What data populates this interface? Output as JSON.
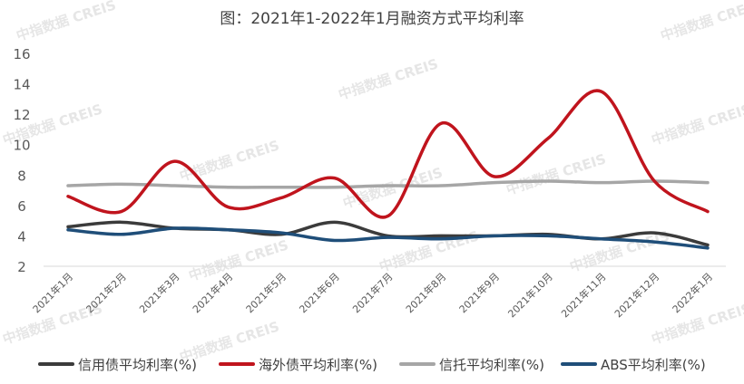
{
  "chart_data": {
    "type": "line",
    "title": "图：2021年1-2022年1月融资方式平均利率",
    "xlabel": "",
    "ylabel": "",
    "categories": [
      "2021年1月",
      "2021年2月",
      "2021年3月",
      "2021年4月",
      "2021年5月",
      "2021年6月",
      "2021年7月",
      "2021年8月",
      "2021年9月",
      "2021年10月",
      "2021年11月",
      "2021年12月",
      "2022年1月"
    ],
    "ylim": [
      2,
      16
    ],
    "yticks": [
      2,
      4,
      6,
      8,
      10,
      12,
      14,
      16
    ],
    "grid": false,
    "legend_position": "bottom",
    "series": [
      {
        "name": "信用债平均利率(%)",
        "color": "#3b3b3b",
        "values": [
          4.6,
          4.9,
          4.5,
          4.4,
          4.1,
          4.9,
          4.0,
          4.0,
          4.0,
          4.1,
          3.8,
          4.2,
          3.4
        ]
      },
      {
        "name": "海外债平均利率(%)",
        "color": "#c0141d",
        "values": [
          6.6,
          5.6,
          8.9,
          5.9,
          6.5,
          7.8,
          5.3,
          11.4,
          7.9,
          10.4,
          13.5,
          7.6,
          5.6
        ]
      },
      {
        "name": "信托平均利率(%)",
        "color": "#a6a6a6",
        "values": [
          7.3,
          7.4,
          7.3,
          7.2,
          7.2,
          7.2,
          7.3,
          7.3,
          7.5,
          7.6,
          7.5,
          7.6,
          7.5
        ]
      },
      {
        "name": "ABS平均利率(%)",
        "color": "#1f4e79",
        "values": [
          4.4,
          4.1,
          4.5,
          4.4,
          4.2,
          3.7,
          3.9,
          3.8,
          4.0,
          4.0,
          3.8,
          3.6,
          3.2
        ]
      }
    ],
    "watermark": "中指数据 CREIS"
  }
}
